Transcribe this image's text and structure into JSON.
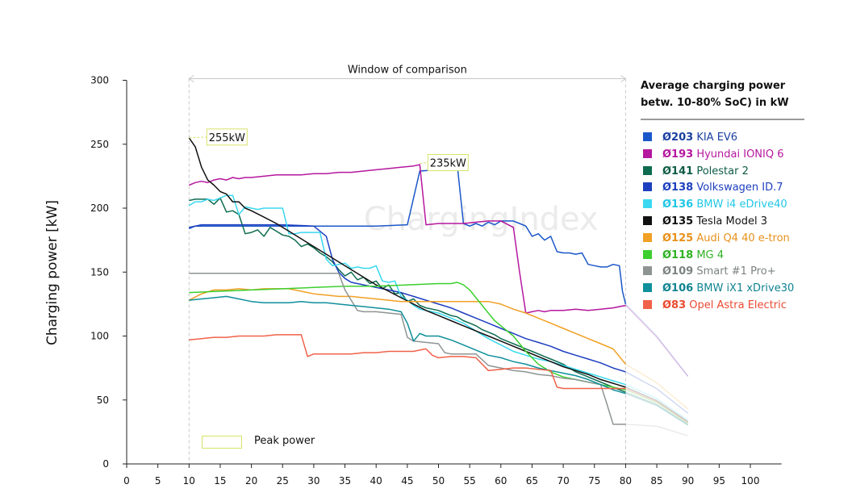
{
  "chart_data": {
    "type": "line",
    "title": "",
    "xlabel": "",
    "ylabel": "Charging power [kW]",
    "xlim": [
      0,
      105
    ],
    "ylim": [
      0,
      300
    ],
    "x_ticks": [
      "0",
      "5",
      "10",
      "15",
      "20",
      "25",
      "30",
      "35",
      "40",
      "45",
      "50",
      "55",
      "60",
      "65",
      "70",
      "75",
      "80",
      "85",
      "90",
      "95",
      "100"
    ],
    "y_ticks": [
      "0",
      "50",
      "100",
      "150",
      "200",
      "250",
      "300"
    ],
    "window_label": "Window of comparison",
    "window_range": [
      10,
      80
    ],
    "watermark": "ChargingIndex",
    "annotations": [
      {
        "text": "255kW",
        "x": 10,
        "y": 255
      },
      {
        "text": "235kW",
        "x": 47,
        "y": 235
      }
    ],
    "peak_legend_label": "Peak power",
    "legend_title_line1": "Average charging power",
    "legend_title_line2": "betw. 10-80% SoC) in kW",
    "series": [
      {
        "avg": "Ø203",
        "name": "KIA EV6",
        "color": "#1a57c9",
        "text_color": "#1a3fa0",
        "x": [
          10,
          11,
          12,
          20,
          30,
          35,
          40,
          45,
          47,
          50,
          52,
          53,
          54,
          55,
          56,
          57,
          58,
          59,
          60,
          62,
          63,
          64,
          65,
          66,
          67,
          68,
          69,
          70,
          71,
          72,
          73,
          74,
          75,
          76,
          77,
          78,
          79,
          79.5,
          80
        ],
        "y": [
          184,
          186,
          186,
          186,
          186,
          186,
          186,
          187,
          229,
          230,
          234,
          234,
          188,
          186,
          188,
          186,
          189,
          187,
          190,
          190,
          188,
          186,
          178,
          180,
          175,
          178,
          166,
          165,
          165,
          164,
          165,
          156,
          155,
          154,
          154,
          156,
          155,
          135,
          125
        ]
      },
      {
        "avg": "Ø193",
        "name": "Hyundai IONIQ 6",
        "color": "#b5179e",
        "text_color": "#b5179e",
        "x": [
          10,
          11,
          12,
          13,
          14,
          15,
          16,
          17,
          18,
          19,
          20,
          22,
          24,
          26,
          28,
          30,
          32,
          34,
          36,
          38,
          40,
          42,
          44,
          46,
          47,
          48,
          50,
          52,
          54,
          56,
          58,
          60,
          62,
          63,
          64,
          65,
          66,
          67,
          68,
          70,
          72,
          74,
          76,
          78,
          80
        ],
        "y": [
          218,
          220,
          221,
          220,
          222,
          223,
          222,
          224,
          223,
          224,
          224,
          225,
          226,
          226,
          226,
          227,
          227,
          228,
          228,
          229,
          230,
          231,
          232,
          233,
          234,
          187,
          188,
          188,
          188,
          189,
          190,
          190,
          185,
          150,
          118,
          119,
          120,
          119,
          120,
          120,
          121,
          120,
          121,
          122,
          124
        ]
      },
      {
        "avg": "Ø141",
        "name": "Polestar 2",
        "color": "#0e6b50",
        "text_color": "#0e5c45",
        "x": [
          10,
          11,
          12,
          13,
          14,
          15,
          16,
          17,
          18,
          19,
          20,
          21,
          22,
          23,
          24,
          25,
          26,
          27,
          28,
          29,
          30,
          31,
          32,
          33,
          34,
          35,
          36,
          37,
          38,
          39,
          40,
          41,
          42,
          43,
          44,
          45,
          46,
          47,
          48,
          49,
          50,
          51,
          52,
          53,
          54,
          55,
          56,
          57,
          58,
          59,
          60,
          61,
          62,
          63,
          64,
          65,
          66,
          67,
          68,
          69,
          70,
          71,
          72,
          73,
          74,
          75,
          76,
          77,
          78,
          79,
          80
        ],
        "y": [
          206,
          207,
          207,
          207,
          203,
          208,
          197,
          198,
          195,
          180,
          181,
          183,
          178,
          185,
          182,
          179,
          178,
          175,
          170,
          172,
          169,
          165,
          162,
          158,
          152,
          147,
          150,
          144,
          146,
          141,
          143,
          137,
          140,
          133,
          134,
          127,
          129,
          124,
          122,
          121,
          120,
          118,
          116,
          115,
          112,
          110,
          108,
          105,
          103,
          101,
          98,
          96,
          94,
          92,
          90,
          88,
          86,
          84,
          82,
          80,
          78,
          75,
          72,
          70,
          68,
          66,
          64,
          62,
          60,
          58,
          56
        ]
      },
      {
        "avg": "Ø138",
        "name": "Volkswagen ID.7",
        "color": "#1d3fbf",
        "text_color": "#1d3fbf",
        "x": [
          10,
          12,
          15,
          20,
          25,
          30,
          32,
          33,
          34,
          35,
          36,
          38,
          40,
          42,
          44,
          46,
          48,
          50,
          52,
          54,
          56,
          58,
          60,
          62,
          64,
          66,
          68,
          70,
          72,
          74,
          76,
          78,
          80
        ],
        "y": [
          185,
          187,
          187,
          187,
          187,
          186,
          178,
          160,
          150,
          145,
          142,
          140,
          138,
          136,
          134,
          131,
          128,
          125,
          122,
          118,
          114,
          110,
          106,
          102,
          98,
          95,
          92,
          88,
          85,
          82,
          79,
          75,
          72
        ]
      },
      {
        "avg": "Ø136",
        "name": "BMW i4 eDrive40",
        "color": "#3ad8f0",
        "text_color": "#21c7e6",
        "x": [
          10,
          11,
          12,
          13,
          14,
          15,
          16,
          17,
          18,
          19,
          20,
          21,
          22,
          24,
          25,
          26,
          27,
          28,
          30,
          31,
          32,
          33,
          34,
          35,
          36,
          37,
          38,
          39,
          40,
          41,
          42,
          43,
          44,
          45,
          46,
          47,
          48,
          50,
          52,
          54,
          56,
          58,
          60,
          62,
          64,
          66,
          68,
          70,
          72,
          74,
          76,
          78,
          80
        ],
        "y": [
          202,
          205,
          205,
          207,
          206,
          208,
          210,
          210,
          195,
          201,
          200,
          199,
          200,
          200,
          200,
          180,
          180,
          181,
          181,
          181,
          160,
          155,
          156,
          157,
          153,
          154,
          153,
          153,
          155,
          143,
          142,
          143,
          131,
          128,
          124,
          121,
          120,
          118,
          114,
          110,
          104,
          98,
          93,
          88,
          85,
          82,
          80,
          77,
          74,
          71,
          68,
          65,
          62
        ]
      },
      {
        "avg": "Ø135",
        "name": "Tesla Model 3",
        "color": "#111111",
        "text_color": "#111111",
        "x": [
          10,
          11,
          12,
          13,
          14,
          15,
          16,
          17,
          18,
          19,
          20,
          22,
          24,
          26,
          28,
          30,
          32,
          34,
          36,
          38,
          40,
          42,
          44,
          46,
          48,
          50,
          52,
          54,
          56,
          58,
          60,
          62,
          64,
          66,
          68,
          70,
          72,
          74,
          76,
          78,
          80
        ],
        "y": [
          255,
          248,
          232,
          222,
          218,
          213,
          211,
          205,
          205,
          200,
          198,
          193,
          188,
          182,
          176,
          170,
          164,
          158,
          152,
          146,
          140,
          135,
          130,
          125,
          120,
          116,
          112,
          108,
          104,
          100,
          96,
          92,
          88,
          84,
          80,
          76,
          73,
          70,
          66,
          63,
          60
        ]
      },
      {
        "avg": "Ø125",
        "name": "Audi Q4 40 e-tron",
        "color": "#f0a024",
        "text_color": "#e8901a",
        "x": [
          10,
          12,
          14,
          16,
          18,
          20,
          22,
          24,
          26,
          28,
          30,
          32,
          34,
          36,
          38,
          40,
          42,
          44,
          46,
          48,
          50,
          52,
          54,
          56,
          58,
          60,
          62,
          64,
          66,
          68,
          70,
          72,
          74,
          76,
          78,
          80
        ],
        "y": [
          128,
          133,
          136,
          136,
          137,
          136,
          137,
          137,
          137,
          135,
          133,
          132,
          131,
          131,
          130,
          129,
          128,
          127,
          127,
          127,
          127,
          127,
          127,
          127,
          127,
          125,
          121,
          118,
          114,
          110,
          106,
          102,
          98,
          94,
          90,
          78
        ]
      },
      {
        "avg": "Ø118",
        "name": "MG 4",
        "color": "#3ccf2e",
        "text_color": "#2fb224",
        "x": [
          10,
          15,
          20,
          25,
          30,
          35,
          40,
          45,
          50,
          52,
          53,
          54,
          55,
          56,
          57,
          58,
          59,
          60,
          62,
          64,
          66,
          68,
          70,
          72,
          74,
          76,
          78,
          80
        ],
        "y": [
          134,
          135,
          136,
          137,
          138,
          139,
          139,
          140,
          141,
          141,
          142,
          140,
          136,
          130,
          124,
          118,
          112,
          108,
          100,
          88,
          78,
          72,
          68,
          66,
          64,
          62,
          60,
          58
        ]
      },
      {
        "avg": "Ø109",
        "name": "Smart #1 Pro+",
        "color": "#8e9492",
        "text_color": "#7c8381",
        "x": [
          10,
          15,
          20,
          25,
          30,
          34,
          35,
          36,
          37,
          38,
          40,
          42,
          44,
          45,
          46,
          48,
          50,
          51,
          52,
          54,
          56,
          58,
          60,
          62,
          64,
          66,
          68,
          70,
          72,
          74,
          76,
          77,
          78,
          79,
          80
        ],
        "y": [
          149,
          149,
          149,
          149,
          149,
          149,
          136,
          128,
          120,
          119,
          119,
          118,
          117,
          99,
          96,
          95,
          94,
          87,
          86,
          86,
          86,
          77,
          75,
          73,
          72,
          70,
          69,
          67,
          66,
          64,
          62,
          47,
          31,
          31,
          31
        ]
      },
      {
        "avg": "Ø106",
        "name": "BMW iX1 xDrive30",
        "color": "#0f8f9c",
        "text_color": "#0f8391",
        "x": [
          10,
          12,
          14,
          16,
          18,
          20,
          22,
          24,
          26,
          28,
          30,
          32,
          34,
          36,
          38,
          40,
          42,
          44,
          45,
          46,
          47,
          48,
          50,
          52,
          54,
          56,
          58,
          60,
          62,
          64,
          66,
          68,
          70,
          72,
          74,
          76,
          78,
          80
        ],
        "y": [
          128,
          129,
          130,
          131,
          129,
          127,
          126,
          126,
          126,
          127,
          126,
          126,
          125,
          124,
          123,
          122,
          121,
          119,
          110,
          96,
          102,
          100,
          100,
          97,
          93,
          89,
          85,
          83,
          80,
          78,
          75,
          73,
          71,
          69,
          66,
          62,
          58,
          55
        ]
      },
      {
        "avg": "Ø83",
        "name": "Opel Astra Electric",
        "color": "#f0624a",
        "text_color": "#ea4a31",
        "x": [
          10,
          12,
          14,
          16,
          18,
          20,
          22,
          24,
          26,
          28,
          29,
          30,
          32,
          34,
          36,
          38,
          40,
          42,
          44,
          46,
          47,
          48,
          49,
          50,
          52,
          54,
          56,
          58,
          60,
          62,
          64,
          66,
          68,
          69,
          70,
          72,
          74,
          76,
          78,
          80
        ],
        "y": [
          97,
          98,
          99,
          99,
          100,
          100,
          100,
          101,
          101,
          101,
          84,
          86,
          86,
          86,
          86,
          87,
          87,
          88,
          88,
          88,
          89,
          90,
          85,
          83,
          84,
          84,
          83,
          73,
          74,
          75,
          75,
          74,
          73,
          60,
          59,
          59,
          59,
          59,
          59,
          59
        ]
      }
    ]
  }
}
